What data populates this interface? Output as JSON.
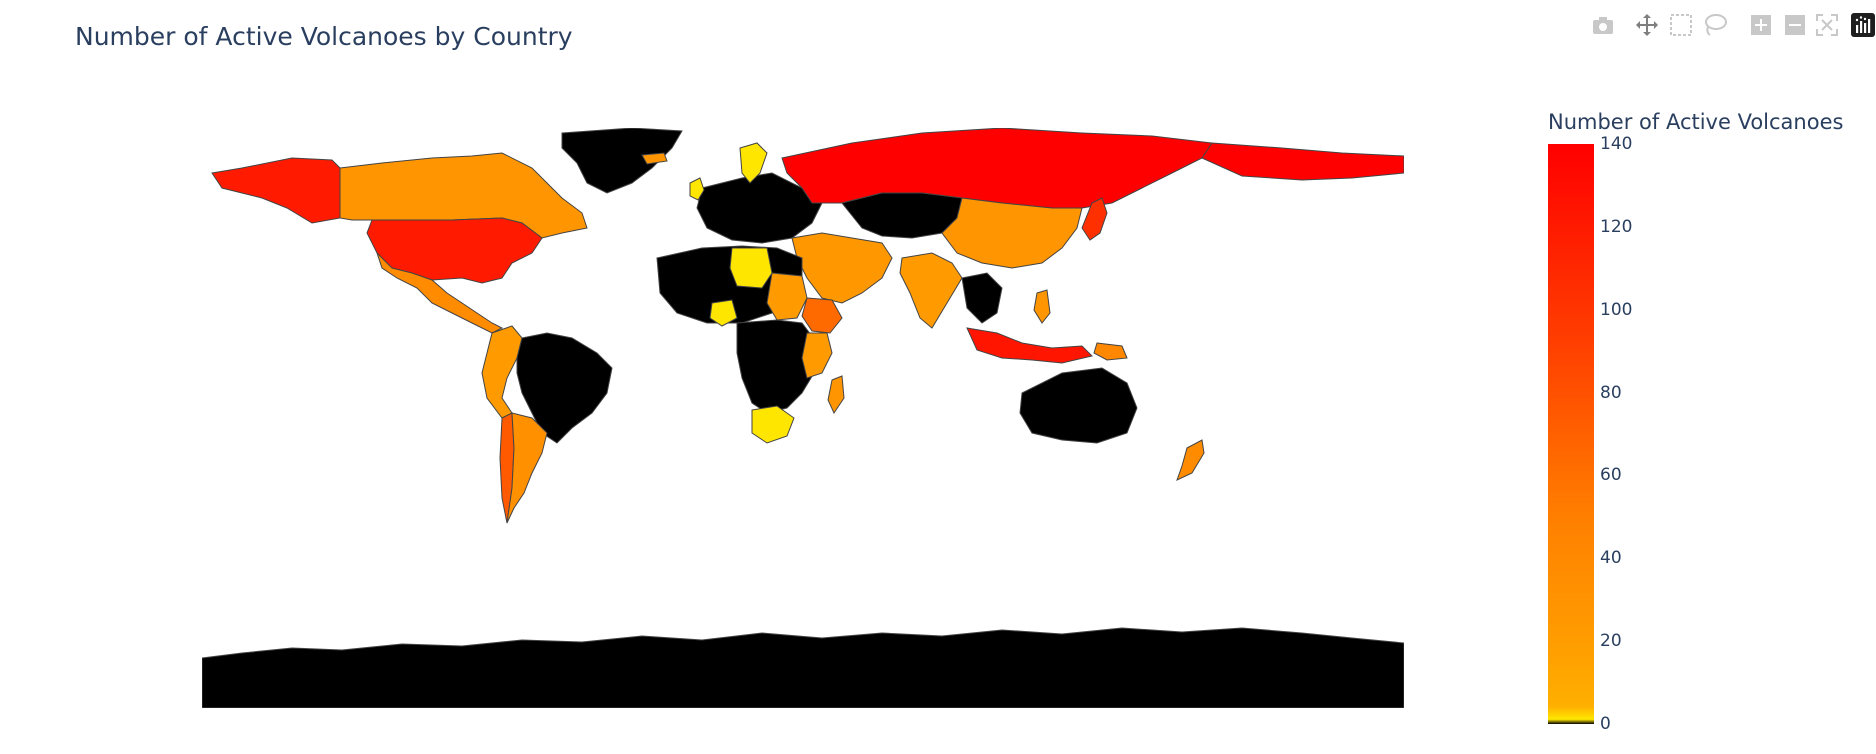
{
  "title": "Number of Active Volcanoes by Country",
  "modebar": {
    "buttons": [
      {
        "name": "camera-icon"
      },
      {
        "name": "pan-icon"
      },
      {
        "name": "box-select-icon"
      },
      {
        "name": "lasso-select-icon"
      },
      {
        "name": "zoom-in-icon"
      },
      {
        "name": "zoom-out-icon"
      },
      {
        "name": "reset-view-icon"
      },
      {
        "name": "plotly-logo-icon"
      }
    ]
  },
  "colorbar": {
    "title": "Number of Active Volcanoes",
    "ticks": [
      "0",
      "20",
      "40",
      "60",
      "80",
      "100",
      "120",
      "140"
    ],
    "range": [
      0,
      140
    ]
  },
  "colors": {
    "no_data": "#000000",
    "border": "#444444",
    "scale": [
      [
        0.0,
        "#000000"
      ],
      [
        0.01,
        "#ffe800"
      ],
      [
        0.05,
        "#ffd000"
      ],
      [
        0.12,
        "#ffa000"
      ],
      [
        0.35,
        "#ff8000"
      ],
      [
        0.65,
        "#ff4000"
      ],
      [
        1.0,
        "#ff0000"
      ]
    ]
  },
  "chart_data": {
    "type": "choropleth",
    "projection": "equirectangular",
    "title": "Number of Active Volcanoes by Country",
    "colorbar_title": "Number of Active Volcanoes",
    "range": [
      0,
      140
    ],
    "countries": [
      {
        "name": "United States",
        "value": 130
      },
      {
        "name": "Russia",
        "value": 140
      },
      {
        "name": "Canada",
        "value": 20
      },
      {
        "name": "Mexico",
        "value": 25
      },
      {
        "name": "Chile",
        "value": 60
      },
      {
        "name": "Argentina",
        "value": 25
      },
      {
        "name": "Peru",
        "value": 20
      },
      {
        "name": "Ecuador",
        "value": 20
      },
      {
        "name": "Colombia",
        "value": 20
      },
      {
        "name": "Bolivia",
        "value": 20
      },
      {
        "name": "Japan",
        "value": 110
      },
      {
        "name": "Indonesia",
        "value": 130
      },
      {
        "name": "China",
        "value": 20
      },
      {
        "name": "India",
        "value": 20
      },
      {
        "name": "Ethiopia",
        "value": 60
      },
      {
        "name": "Saudi Arabia",
        "value": 20
      },
      {
        "name": "Sudan",
        "value": 20
      },
      {
        "name": "Iran",
        "value": 20
      },
      {
        "name": "Turkey",
        "value": 20
      },
      {
        "name": "Italy",
        "value": 20
      },
      {
        "name": "Papua New Guinea",
        "value": 40
      },
      {
        "name": "Philippines",
        "value": 40
      },
      {
        "name": "New Zealand",
        "value": 40
      },
      {
        "name": "Madagascar",
        "value": 20
      },
      {
        "name": "Libya",
        "value": 5
      },
      {
        "name": "Nigeria",
        "value": 5
      },
      {
        "name": "Sweden",
        "value": 5
      },
      {
        "name": "United Kingdom",
        "value": 5
      },
      {
        "name": "South Africa",
        "value": 5
      },
      {
        "name": "Iceland",
        "value": 20
      }
    ]
  }
}
